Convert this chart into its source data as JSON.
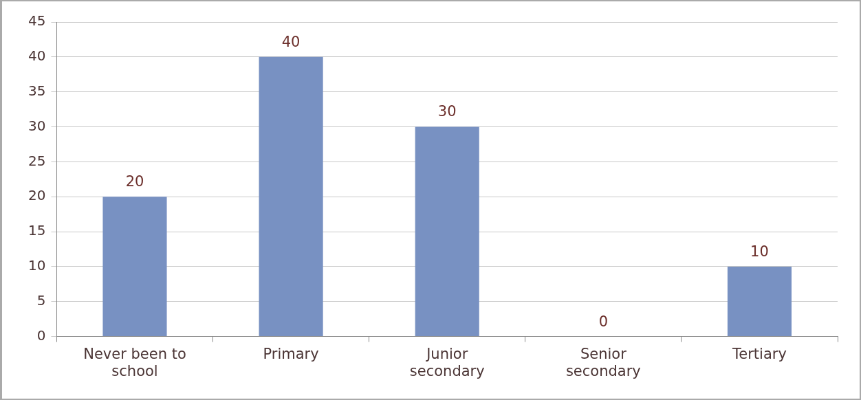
{
  "chart_data": {
    "type": "bar",
    "categories": [
      "Never been to school",
      "Primary",
      "Junior secondary",
      "Senior secondary",
      "Tertiary"
    ],
    "values": [
      20,
      40,
      30,
      0,
      10
    ],
    "color": "#7891c2",
    "ylim": [
      0,
      45
    ],
    "yticks": [
      0,
      5,
      10,
      15,
      20,
      25,
      30,
      35,
      40,
      45
    ],
    "grid": "y",
    "data_labels": true,
    "legend": false
  }
}
